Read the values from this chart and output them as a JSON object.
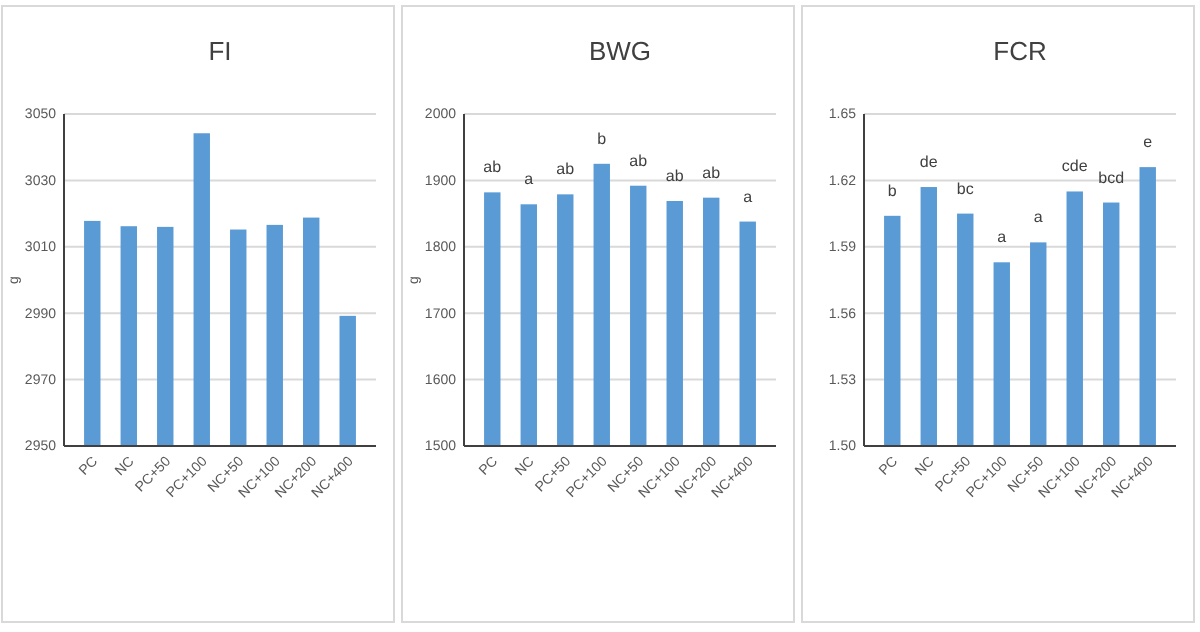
{
  "chart_data": [
    {
      "type": "bar",
      "title": "FI",
      "ylabel": "g",
      "categories": [
        "PC",
        "NC",
        "PC+50",
        "PC+100",
        "NC+50",
        "NC+100",
        "NC+200",
        "NC+400"
      ],
      "values": [
        3017.8,
        3016.2,
        3016,
        3044.2,
        3015.2,
        3016.6,
        3018.8,
        2989.2
      ],
      "color": "#5b9bd5",
      "ylim": [
        2950,
        3050
      ],
      "yticks": [
        2950,
        2970,
        2990,
        3010,
        3030,
        3050
      ],
      "grid": "y"
    },
    {
      "type": "bar",
      "title": "BWG",
      "ylabel": "g",
      "categories": [
        "PC",
        "NC",
        "PC+50",
        "PC+100",
        "NC+50",
        "NC+100",
        "NC+200",
        "NC+400"
      ],
      "values": [
        1882,
        1864,
        1879,
        1925,
        1892,
        1869,
        1874,
        1838
      ],
      "color": "#5b9bd5",
      "ylim": [
        1500,
        2000
      ],
      "yticks": [
        1500,
        1600,
        1700,
        1800,
        1900,
        2000
      ],
      "grid": "y",
      "annotations": [
        {
          "text": "ab",
          "x": "PC",
          "y": 1882
        },
        {
          "text": "a",
          "x": "NC",
          "y": 1864
        },
        {
          "text": "ab",
          "x": "PC+50",
          "y": 1879
        },
        {
          "text": "b",
          "x": "PC+100",
          "y": 1925
        },
        {
          "text": "ab",
          "x": "NC+50",
          "y": 1892
        },
        {
          "text": "ab",
          "x": "NC+100",
          "y": 1869
        },
        {
          "text": "ab",
          "x": "NC+200",
          "y": 1874
        },
        {
          "text": "a",
          "x": "NC+400",
          "y": 1838
        }
      ]
    },
    {
      "type": "bar",
      "title": "FCR",
      "categories": [
        "PC",
        "NC",
        "PC+50",
        "PC+100",
        "NC+50",
        "NC+100",
        "NC+200",
        "NC+400"
      ],
      "values": [
        1.604,
        1.617,
        1.605,
        1.583,
        1.592,
        1.615,
        1.61,
        1.626
      ],
      "color": "#5b9bd5",
      "ylim": [
        1.5,
        1.65
      ],
      "yticks": [
        {
          "value": 1.5,
          "label": "1.50"
        },
        1.53,
        1.56,
        1.59,
        1.62,
        1.65
      ],
      "grid": "y",
      "annotations": [
        {
          "text": "b",
          "x": "PC",
          "y": 1.604
        },
        {
          "text": "de",
          "x": "NC",
          "y": 1.617
        },
        {
          "text": "bc",
          "x": "PC+50",
          "y": 1.605
        },
        {
          "text": "a",
          "x": "PC+100",
          "y": 1.583
        },
        {
          "text": "a",
          "x": "NC+50",
          "y": 1.592
        },
        {
          "text": "cde",
          "x": "NC+100",
          "y": 1.615
        },
        {
          "text": "bcd",
          "x": "NC+200",
          "y": 1.61
        },
        {
          "text": "e",
          "x": "NC+400",
          "y": 1.626
        }
      ]
    }
  ]
}
